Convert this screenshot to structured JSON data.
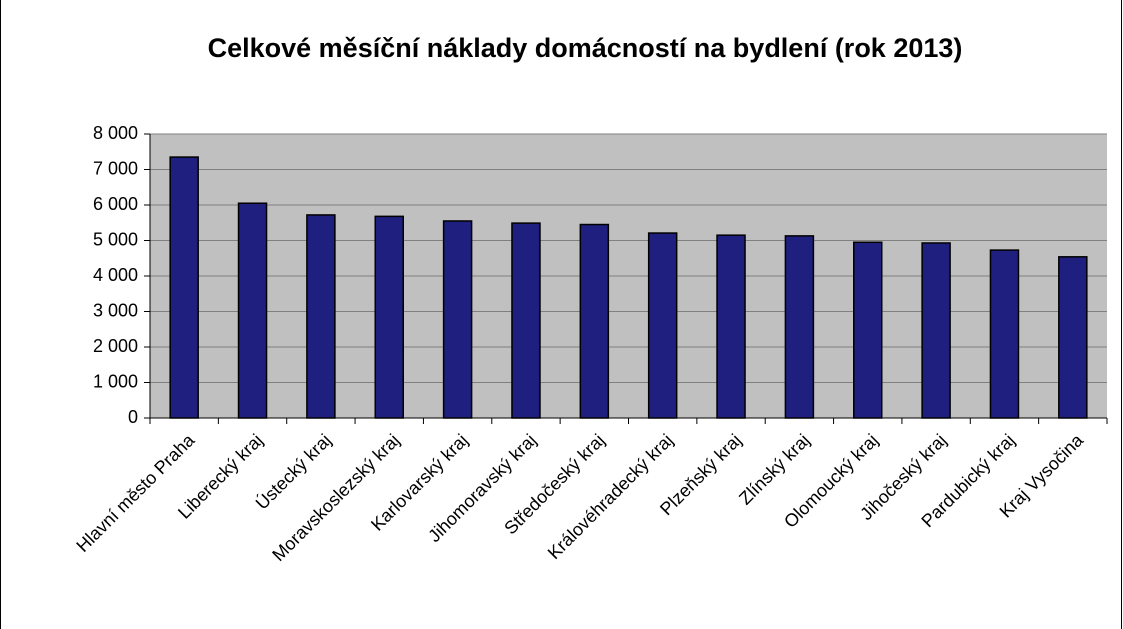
{
  "chart_data": {
    "type": "bar",
    "title": "Celkové měsíční náklady domácností na bydlení (rok 2013)",
    "categories": [
      "Hlavní město Praha",
      "Liberecký kraj",
      "Ústecký kraj",
      "Moravskoslezský kraj",
      "Karlovarský kraj",
      "Jihomoravský kraj",
      "Středočeský kraj",
      "Královéhradecký kraj",
      "Plzeňský kraj",
      "Zlínský kraj",
      "Olomoucký kraj",
      "Jihočeský kraj",
      "Pardubický kraj",
      "Kraj Vysočina"
    ],
    "values": [
      7350,
      6050,
      5720,
      5680,
      5550,
      5490,
      5450,
      5210,
      5150,
      5130,
      4950,
      4930,
      4730,
      4540
    ],
    "color": "#1f1f7f",
    "ylim": [
      0,
      8000
    ],
    "yticks": [
      0,
      {
        "value": 1000,
        "label": "1 000"
      },
      {
        "value": 2000,
        "label": "2 000"
      },
      {
        "value": 3000,
        "label": "3 000"
      },
      {
        "value": 4000,
        "label": "4 000"
      },
      {
        "value": 5000,
        "label": "5 000"
      },
      {
        "value": 6000,
        "label": "6 000"
      },
      {
        "value": 7000,
        "label": "7 000"
      },
      {
        "value": 8000,
        "label": "8 000"
      }
    ],
    "grid": true
  }
}
